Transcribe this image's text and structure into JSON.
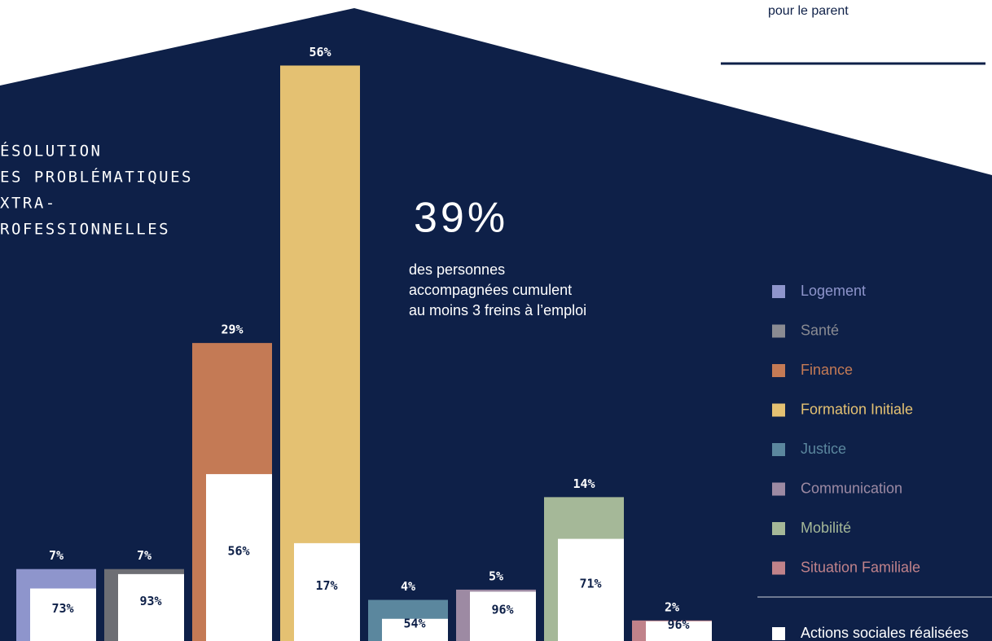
{
  "header": {
    "note": "pour le parent"
  },
  "heading": [
    "ÉSOLUTION",
    "ES PROBLÉMATIQUES",
    "XTRA-",
    "ROFESSIONNELLES"
  ],
  "highlight": {
    "figure": "39%",
    "text": [
      "des personnes",
      "accompagnées cumulent",
      "au moins 3 freins à l’emploi"
    ]
  },
  "chart_data": {
    "type": "bar",
    "categories": [
      "Logement",
      "Santé",
      "Finance",
      "Formation Initiale",
      "Justice",
      "Communication",
      "Mobilité",
      "Situation Familiale"
    ],
    "colors": [
      "#8e95cc",
      "#6d6e74",
      "#c47a55",
      "#e4c172",
      "#5b879e",
      "#9d8aa3",
      "#a5b898",
      "#c0828a"
    ],
    "legend_colors": [
      "#8e95cc",
      "#8a8b92",
      "#c47a55",
      "#e4c172",
      "#5b879e",
      "#9d8aa3",
      "#a5b898",
      "#c0828a"
    ],
    "ylim": [
      0,
      60
    ],
    "series": [
      {
        "values": [
          7,
          7,
          29,
          56,
          4,
          5,
          14,
          2
        ],
        "value_labels": [
          "7%",
          "7%",
          "29%",
          "56%",
          "4%",
          "5%",
          "14%",
          "2%"
        ]
      },
      {
        "name": "Actions sociales réalisées",
        "color": "#ffffff",
        "values": [
          73,
          93,
          56,
          17,
          54,
          96,
          71,
          96
        ],
        "value_labels": [
          "73%",
          "93%",
          "56%",
          "17%",
          "54%",
          "96%",
          "71%",
          "96%"
        ]
      }
    ]
  }
}
